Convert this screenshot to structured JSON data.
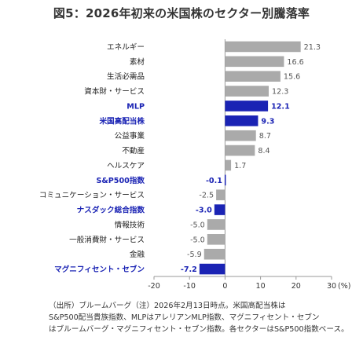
{
  "title": "図5：2026年初来の米国株のセクター別騰落率",
  "chart_data": {
    "type": "bar",
    "orientation": "horizontal",
    "categories": [
      "エネルギー",
      "素材",
      "生活必需品",
      "資本財・サービス",
      "MLP",
      "米国高配当株",
      "公益事業",
      "不動産",
      "ヘルスケア",
      "S&P500指数",
      "コミュニケーション・サービス",
      "ナスダック総合指数",
      "情報技術",
      "一般消費財・サービス",
      "金融",
      "マグニフィセント・セブン"
    ],
    "values": [
      21.3,
      16.6,
      15.6,
      12.3,
      12.1,
      9.3,
      8.7,
      8.4,
      1.7,
      -0.1,
      -2.5,
      -3.0,
      -5.0,
      -5.0,
      -5.9,
      -7.2
    ],
    "value_labels": [
      "21.3",
      "16.6",
      "15.6",
      "12.3",
      "12.1",
      "9.3",
      "8.7",
      "8.4",
      "1.7",
      "-0.1",
      "-2.5",
      "-3.0",
      "-5.0",
      "-5.0",
      "-5.9",
      "-7.2"
    ],
    "highlighted": [
      false,
      false,
      false,
      false,
      true,
      true,
      false,
      false,
      false,
      true,
      false,
      true,
      false,
      false,
      false,
      true
    ],
    "xlim": [
      -20,
      30
    ],
    "xticks": [
      "-20",
      "-10",
      "0",
      "10",
      "20",
      "30"
    ],
    "xunit": "(%)",
    "colors": {
      "normal_bar": "#aaaaaa",
      "highlight_bar": "#1a23b4",
      "highlight_text": "#1a23b4",
      "normal_text": "#222222"
    }
  },
  "source_lines": [
    "（出所）ブルームバーグ（注）2026年2月13日時点。米国高配当株は",
    "S&P500配当貴族指数、MLPはアレリアンMLP指数、マグニフィセント・セブン",
    "はブルームバーグ・マグニフィセント・セブン指数。各セクターはS&P500指数ベース。"
  ]
}
